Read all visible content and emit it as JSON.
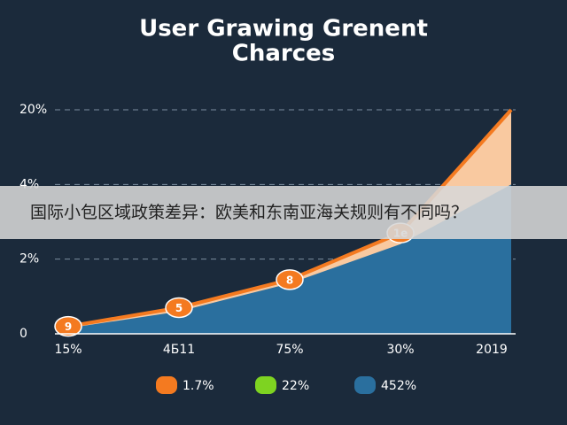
{
  "chart_data": {
    "type": "area",
    "title": [
      "User Grawing Grenent",
      "Charces"
    ],
    "categories": [
      "15%",
      "4Б11",
      "75%",
      "30%",
      "2019"
    ],
    "series": [
      {
        "name": "1.7%",
        "color": "#f47a20",
        "values": [
          0.2,
          0.7,
          1.45,
          2.7,
          20
        ]
      },
      {
        "name": "22%",
        "color": "#7ed321",
        "values": [
          null,
          null,
          null,
          null,
          null
        ]
      },
      {
        "name": "452%",
        "color": "#2a6f9e",
        "values": [
          0.15,
          0.6,
          1.35,
          2.4,
          4
        ]
      }
    ],
    "point_labels": [
      "9",
      "5",
      "8",
      "1e"
    ],
    "ylim": [
      0,
      20
    ],
    "yticks": [
      0,
      {
        "value": 2,
        "label": "2%"
      },
      {
        "value": 4,
        "label": "4%"
      },
      {
        "value": 20,
        "label": "20%"
      }
    ],
    "grid": true
  },
  "banner": "国际小包区域政策差异：欧美和东南亚海关规则有不同吗？"
}
